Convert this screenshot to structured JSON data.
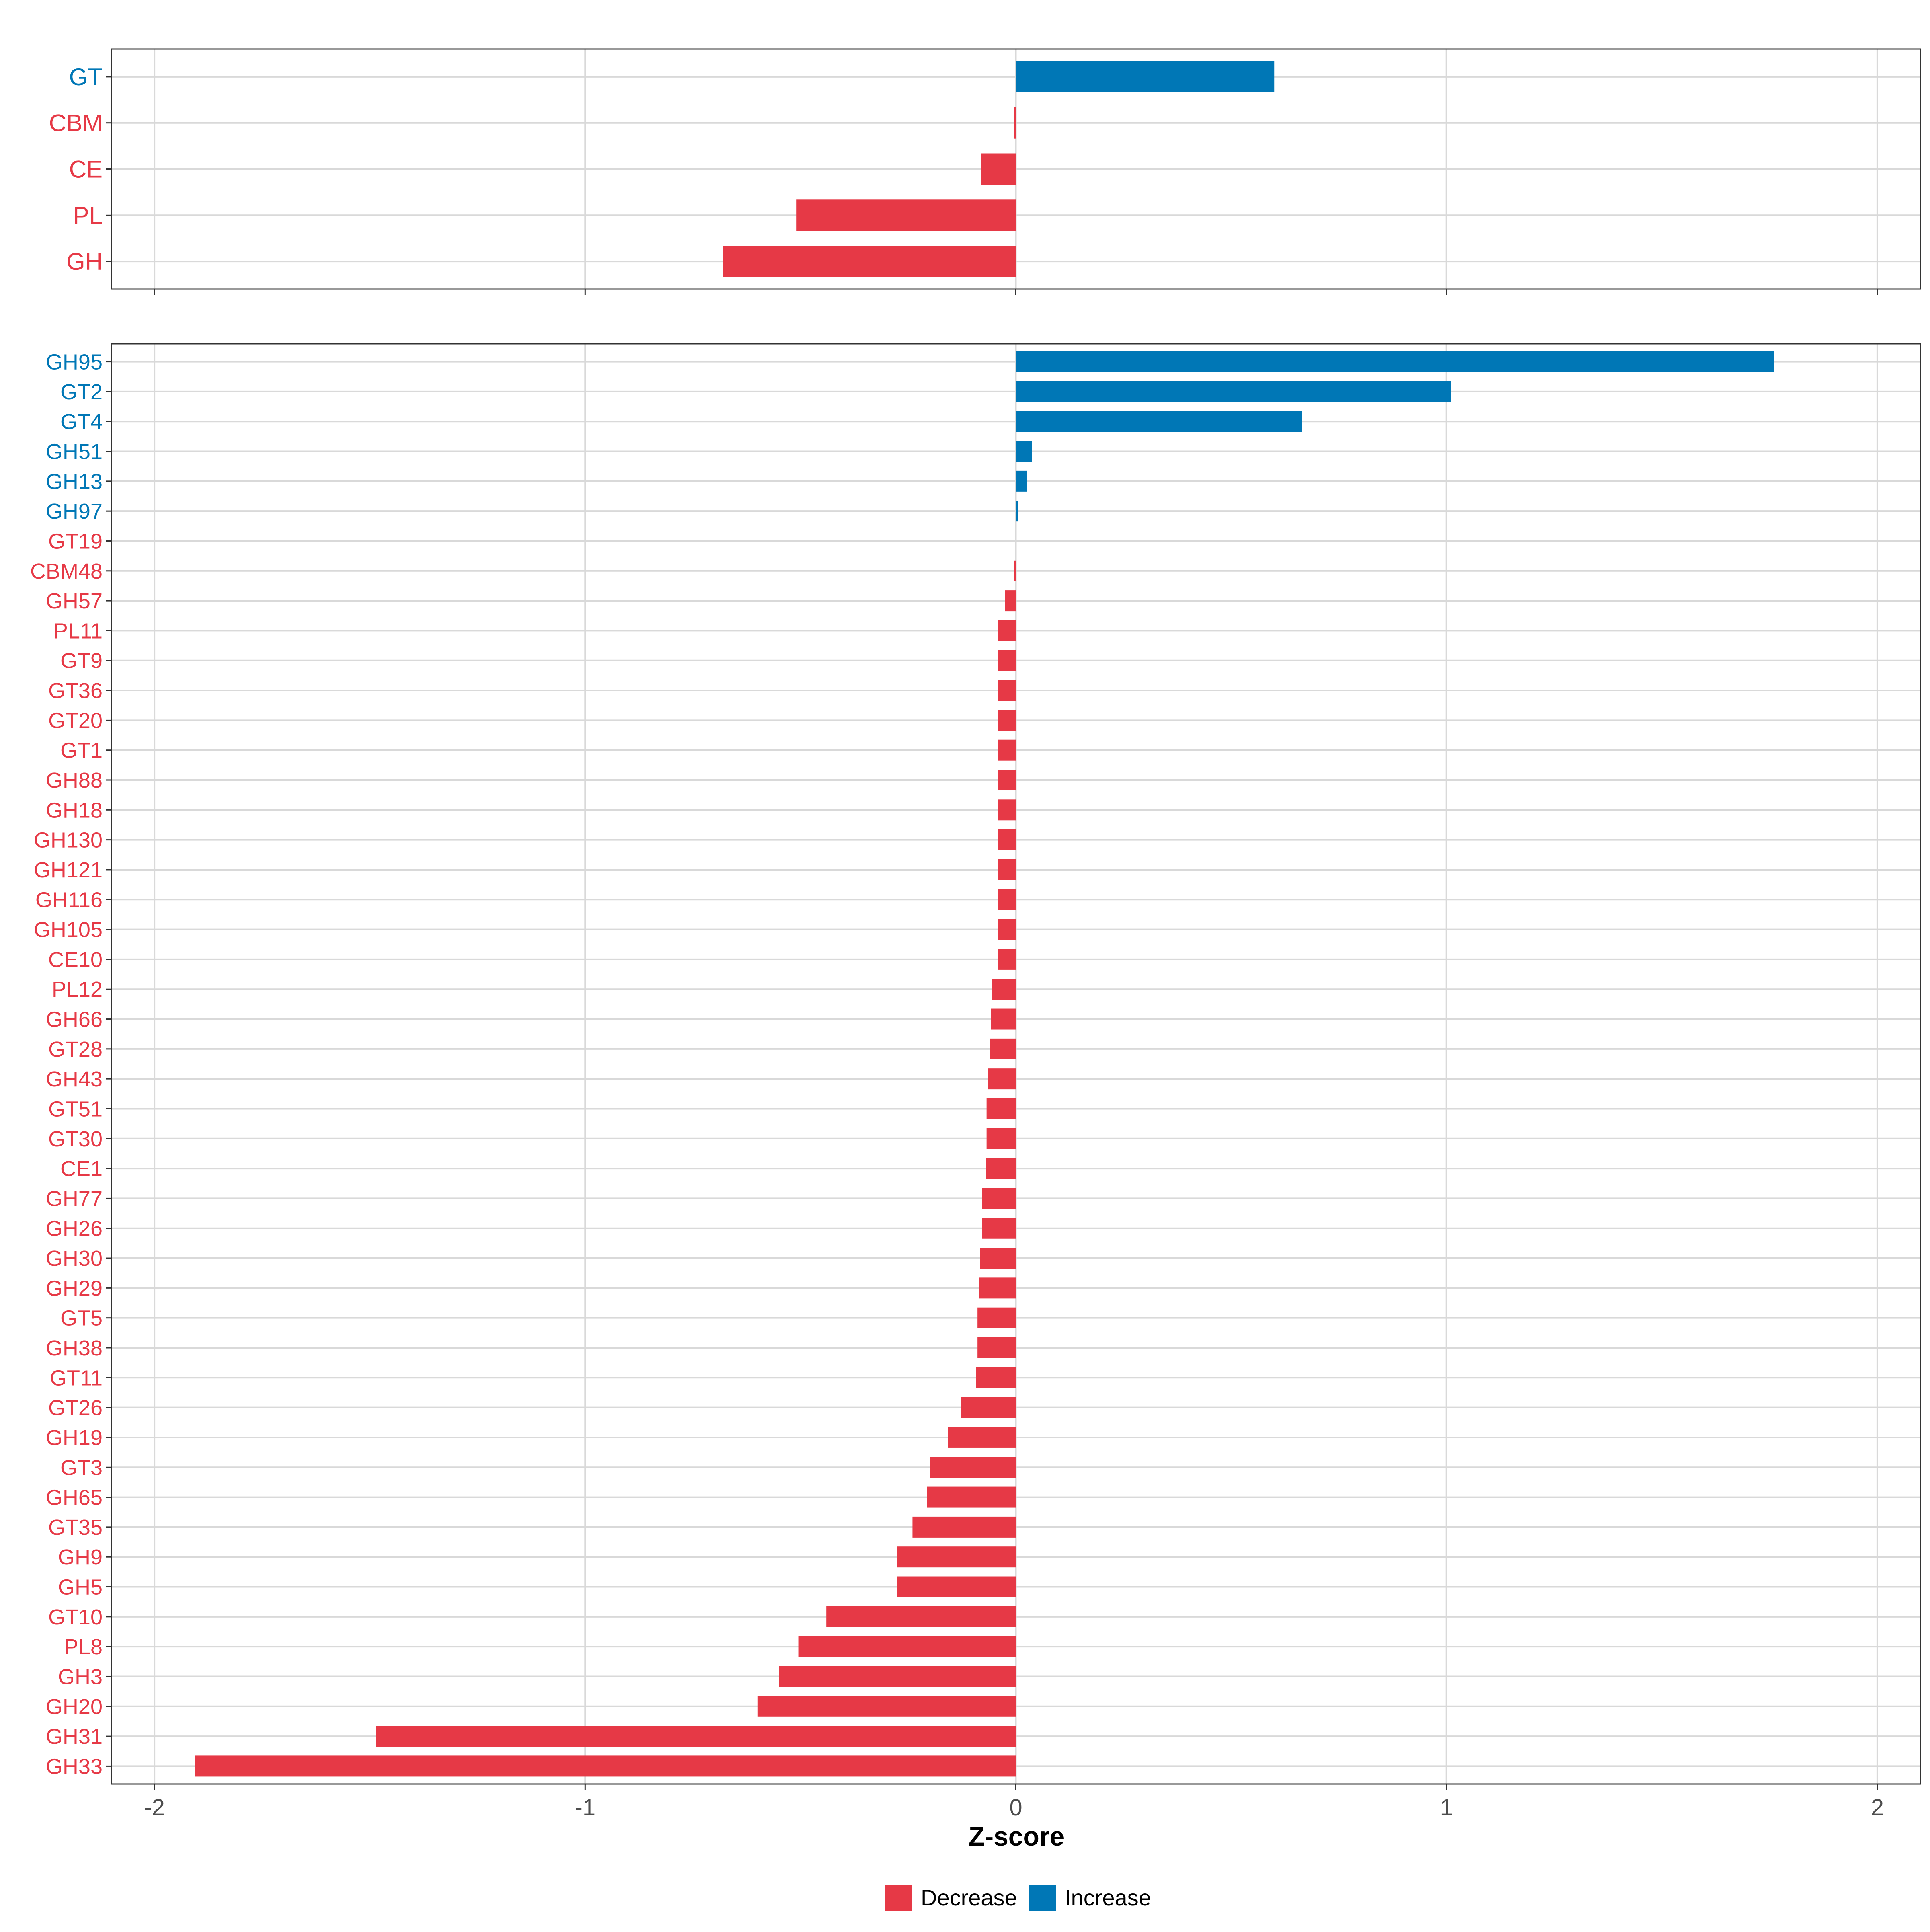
{
  "colors": {
    "decrease": "#E63946",
    "increase": "#0077B6",
    "grid": "#D9D9D9",
    "panel_border": "#333333",
    "tick_text": "#4D4D4D"
  },
  "chart_data": [
    {
      "type": "bar",
      "orientation": "horizontal",
      "panel": "top",
      "categories": [
        "GT",
        "CBM",
        "CE",
        "PL",
        "GH"
      ],
      "values": [
        0.6,
        -0.005,
        -0.08,
        -0.51,
        -0.68
      ],
      "direction": [
        "Increase",
        "Decrease",
        "Decrease",
        "Decrease",
        "Decrease"
      ],
      "xlim": [
        -2.1,
        2.1
      ],
      "xticks": [
        -2,
        -1,
        0,
        1,
        2
      ],
      "grid": true
    },
    {
      "type": "bar",
      "orientation": "horizontal",
      "panel": "bottom",
      "categories": [
        "GH95",
        "GT2",
        "GT4",
        "GH51",
        "GH13",
        "GH97",
        "GT19",
        "CBM48",
        "GH57",
        "PL11",
        "GT9",
        "GT36",
        "GT20",
        "GT1",
        "GH88",
        "GH18",
        "GH130",
        "GH121",
        "GH116",
        "GH105",
        "CE10",
        "PL12",
        "GH66",
        "GT28",
        "GH43",
        "GT51",
        "GT30",
        "CE1",
        "GH77",
        "GH26",
        "GH30",
        "GH29",
        "GT5",
        "GH38",
        "GT11",
        "GT26",
        "GH19",
        "GT3",
        "GH65",
        "GT35",
        "GH9",
        "GH5",
        "GT10",
        "PL8",
        "GH3",
        "GH20",
        "GH31",
        "GH33"
      ],
      "values": [
        1.76,
        1.01,
        0.665,
        0.037,
        0.025,
        0.006,
        0.0,
        -0.005,
        -0.025,
        -0.042,
        -0.042,
        -0.042,
        -0.042,
        -0.042,
        -0.042,
        -0.042,
        -0.042,
        -0.042,
        -0.042,
        -0.042,
        -0.042,
        -0.055,
        -0.058,
        -0.06,
        -0.065,
        -0.068,
        -0.068,
        -0.07,
        -0.078,
        -0.078,
        -0.083,
        -0.086,
        -0.089,
        -0.089,
        -0.092,
        -0.127,
        -0.158,
        -0.2,
        -0.206,
        -0.24,
        -0.275,
        -0.275,
        -0.44,
        -0.505,
        -0.55,
        -0.6,
        -1.485,
        -1.905
      ],
      "direction": [
        "Increase",
        "Increase",
        "Increase",
        "Increase",
        "Increase",
        "Increase",
        "Decrease",
        "Decrease",
        "Decrease",
        "Decrease",
        "Decrease",
        "Decrease",
        "Decrease",
        "Decrease",
        "Decrease",
        "Decrease",
        "Decrease",
        "Decrease",
        "Decrease",
        "Decrease",
        "Decrease",
        "Decrease",
        "Decrease",
        "Decrease",
        "Decrease",
        "Decrease",
        "Decrease",
        "Decrease",
        "Decrease",
        "Decrease",
        "Decrease",
        "Decrease",
        "Decrease",
        "Decrease",
        "Decrease",
        "Decrease",
        "Decrease",
        "Decrease",
        "Decrease",
        "Decrease",
        "Decrease",
        "Decrease",
        "Decrease",
        "Decrease",
        "Decrease",
        "Decrease",
        "Decrease",
        "Decrease"
      ],
      "xlim": [
        -2.1,
        2.1
      ],
      "xticks": [
        -2,
        -1,
        0,
        1,
        2
      ],
      "xlabel": "Z-score",
      "grid": true
    }
  ],
  "x_tick_labels": [
    "-2",
    "-1",
    "0",
    "1",
    "2"
  ],
  "legend": {
    "position": "bottom",
    "items": [
      {
        "label": "Decrease",
        "color": "#E63946"
      },
      {
        "label": "Increase",
        "color": "#0077B6"
      }
    ]
  }
}
